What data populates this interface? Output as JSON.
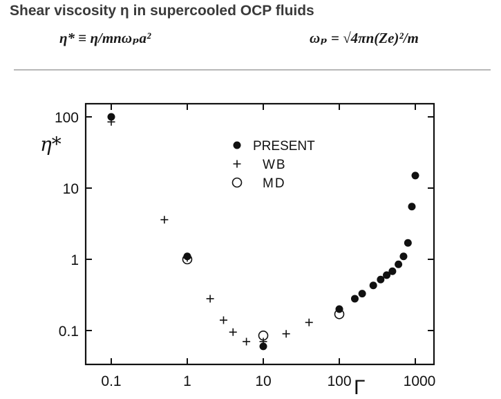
{
  "header": {
    "title": "Shear viscosity η  in supercooled OCP fluids",
    "formula_left": "η* ≡ η/mnωₚa²",
    "formula_right": "ωₚ = √4πn(Ze)²/m"
  },
  "chart_data": {
    "type": "scatter",
    "title": "Shear viscosity η in supercooled OCP fluids",
    "xlabel": "Γ",
    "ylabel": "η*",
    "xscale": "log",
    "yscale": "log",
    "xlim": [
      0.05,
      1500
    ],
    "ylim": [
      0.03,
      150
    ],
    "xticks": [
      0.1,
      1,
      10,
      100,
      1000
    ],
    "xtick_labels": [
      "0.1",
      "1",
      "10",
      "100",
      "1000"
    ],
    "yticks": [
      0.1,
      1,
      10,
      100
    ],
    "ytick_labels": [
      "0.1",
      "1",
      "10",
      "100"
    ],
    "legend_position": "top-center",
    "series": [
      {
        "name": "PRESENT",
        "marker": "filled-circle",
        "x": [
          0.1,
          1,
          10,
          100,
          160,
          200,
          280,
          350,
          420,
          500,
          600,
          700,
          800,
          900,
          1000
        ],
        "y": [
          100,
          1.1,
          0.06,
          0.2,
          0.28,
          0.33,
          0.43,
          0.52,
          0.6,
          0.68,
          0.85,
          1.1,
          1.7,
          5.5,
          15
        ]
      },
      {
        "name": "WB",
        "marker": "plus",
        "x": [
          0.1,
          0.5,
          1,
          2,
          3,
          4,
          6,
          10,
          20,
          40,
          100
        ],
        "y": [
          85,
          3.6,
          1.05,
          0.28,
          0.14,
          0.095,
          0.07,
          0.07,
          0.09,
          0.13,
          0.2
        ]
      },
      {
        "name": "MD",
        "marker": "open-circle",
        "x": [
          1,
          10,
          100
        ],
        "y": [
          1.0,
          0.085,
          0.17
        ]
      }
    ]
  }
}
